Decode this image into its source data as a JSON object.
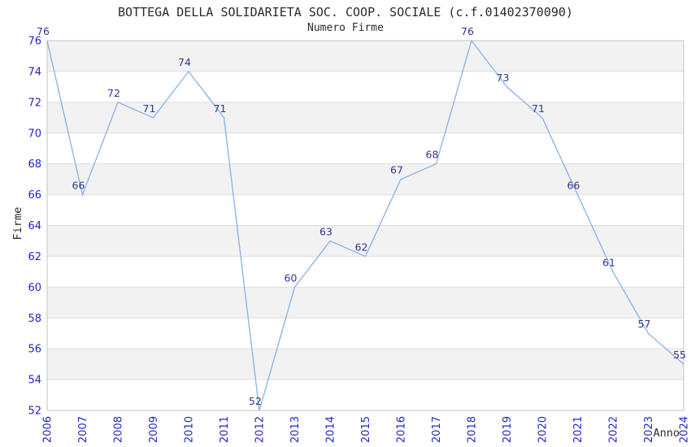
{
  "chart_data": {
    "type": "line",
    "title": "BOTTEGA DELLA SOLIDARIETA SOC. COOP. SOCIALE (c.f.01402370090)",
    "subtitle": "Numero Firme",
    "xlabel": "Anno",
    "ylabel": "Firme",
    "x": [
      2006,
      2007,
      2008,
      2009,
      2010,
      2011,
      2012,
      2013,
      2014,
      2015,
      2016,
      2017,
      2018,
      2019,
      2020,
      2021,
      2022,
      2023,
      2024
    ],
    "series": [
      {
        "name": "Numero Firme",
        "values": [
          76,
          66,
          72,
          71,
          74,
          71,
          52,
          60,
          63,
          62,
          67,
          68,
          76,
          73,
          71,
          66,
          61,
          57,
          55
        ]
      }
    ],
    "ylim": [
      52,
      76
    ],
    "yticks": [
      52,
      54,
      56,
      58,
      60,
      62,
      64,
      66,
      68,
      70,
      72,
      74,
      76
    ],
    "ytick_step": 2,
    "grid": "horizontal-bands",
    "legend": "none",
    "point_labels": "shown",
    "colors": {
      "line": "#86b2e8",
      "data_label": "#333399",
      "tick_label": "#2323cc",
      "band_gray": "#f2f2f2",
      "band_white": "#ffffff",
      "grid_line": "#dedede",
      "plot_border": "#c4c4c4",
      "text": "#2b2b2b",
      "background": "#ffffff"
    }
  }
}
